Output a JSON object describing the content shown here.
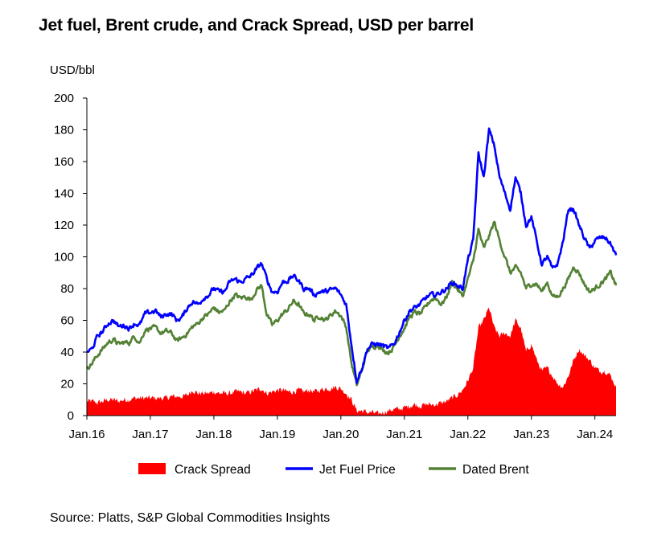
{
  "chart_data": {
    "type": "line",
    "title": "Jet fuel, Brent crude, and Crack Spread, USD per barrel",
    "ylabel": "USD/bbl",
    "xlabel": "",
    "ylim": [
      0,
      200
    ],
    "yticks": [
      0,
      20,
      40,
      60,
      80,
      100,
      120,
      140,
      160,
      180,
      200
    ],
    "xlim": [
      "2016-01",
      "2024-05"
    ],
    "xticks": [
      "Jan.16",
      "Jan.17",
      "Jan.18",
      "Jan.19",
      "Jan.20",
      "Jan.21",
      "Jan.22",
      "Jan.23",
      "Jan.24"
    ],
    "grid": false,
    "legend_position": "bottom",
    "x": [
      "2016-01",
      "2016-02",
      "2016-03",
      "2016-04",
      "2016-05",
      "2016-06",
      "2016-07",
      "2016-08",
      "2016-09",
      "2016-10",
      "2016-11",
      "2016-12",
      "2017-01",
      "2017-02",
      "2017-03",
      "2017-04",
      "2017-05",
      "2017-06",
      "2017-07",
      "2017-08",
      "2017-09",
      "2017-10",
      "2017-11",
      "2017-12",
      "2018-01",
      "2018-02",
      "2018-03",
      "2018-04",
      "2018-05",
      "2018-06",
      "2018-07",
      "2018-08",
      "2018-09",
      "2018-10",
      "2018-11",
      "2018-12",
      "2019-01",
      "2019-02",
      "2019-03",
      "2019-04",
      "2019-05",
      "2019-06",
      "2019-07",
      "2019-08",
      "2019-09",
      "2019-10",
      "2019-11",
      "2019-12",
      "2020-01",
      "2020-02",
      "2020-03",
      "2020-04",
      "2020-05",
      "2020-06",
      "2020-07",
      "2020-08",
      "2020-09",
      "2020-10",
      "2020-11",
      "2020-12",
      "2021-01",
      "2021-02",
      "2021-03",
      "2021-04",
      "2021-05",
      "2021-06",
      "2021-07",
      "2021-08",
      "2021-09",
      "2021-10",
      "2021-11",
      "2021-12",
      "2022-01",
      "2022-02",
      "2022-03",
      "2022-04",
      "2022-05",
      "2022-06",
      "2022-07",
      "2022-08",
      "2022-09",
      "2022-10",
      "2022-11",
      "2022-12",
      "2023-01",
      "2023-02",
      "2023-03",
      "2023-04",
      "2023-05",
      "2023-06",
      "2023-07",
      "2023-08",
      "2023-09",
      "2023-10",
      "2023-11",
      "2023-12",
      "2024-01",
      "2024-02",
      "2024-03",
      "2024-04",
      "2024-05"
    ],
    "series": [
      {
        "name": "Crack Spread",
        "kind": "area",
        "color": "#ff0000",
        "values": [
          9,
          9,
          8,
          9,
          10,
          10,
          9,
          10,
          10,
          11,
          11,
          11,
          11,
          11,
          11,
          11,
          12,
          12,
          12,
          13,
          16,
          14,
          14,
          14,
          15,
          14,
          14,
          14,
          15,
          15,
          14,
          15,
          16,
          17,
          14,
          15,
          16,
          16,
          15,
          15,
          16,
          15,
          16,
          15,
          16,
          17,
          17,
          18,
          17,
          14,
          10,
          3,
          3,
          2,
          2,
          1,
          2,
          3,
          4,
          4,
          5,
          6,
          7,
          6,
          7,
          7,
          7,
          8,
          9,
          11,
          13,
          16,
          22,
          30,
          55,
          60,
          68,
          55,
          50,
          52,
          50,
          60,
          55,
          40,
          45,
          35,
          28,
          30,
          25,
          20,
          18,
          25,
          35,
          42,
          38,
          35,
          30,
          28,
          28,
          25,
          18
        ]
      },
      {
        "name": "Jet Fuel Price",
        "kind": "line",
        "color": "#0000ff",
        "values": [
          40,
          42,
          50,
          53,
          58,
          60,
          56,
          57,
          55,
          58,
          57,
          64,
          65,
          66,
          62,
          64,
          64,
          60,
          62,
          68,
          72,
          70,
          74,
          76,
          80,
          78,
          78,
          84,
          86,
          84,
          86,
          88,
          92,
          96,
          86,
          78,
          78,
          84,
          85,
          88,
          85,
          80,
          80,
          76,
          78,
          78,
          79,
          80,
          76,
          70,
          45,
          22,
          30,
          42,
          45,
          45,
          44,
          42,
          45,
          52,
          60,
          66,
          68,
          70,
          74,
          76,
          76,
          78,
          80,
          84,
          82,
          80,
          98,
          110,
          165,
          150,
          180,
          170,
          150,
          140,
          130,
          150,
          140,
          120,
          125,
          110,
          95,
          100,
          92,
          96,
          110,
          130,
          130,
          120,
          112,
          105,
          110,
          112,
          112,
          108,
          101
        ]
      },
      {
        "name": "Dated Brent",
        "kind": "line",
        "color": "#548235",
        "values": [
          30,
          33,
          38,
          42,
          46,
          48,
          45,
          46,
          46,
          50,
          46,
          54,
          55,
          55,
          52,
          53,
          52,
          47,
          49,
          52,
          56,
          58,
          62,
          64,
          68,
          65,
          66,
          72,
          76,
          74,
          75,
          73,
          79,
          82,
          64,
          57,
          60,
          64,
          67,
          72,
          70,
          64,
          64,
          60,
          63,
          60,
          63,
          66,
          63,
          56,
          33,
          19,
          29,
          41,
          43,
          45,
          41,
          40,
          43,
          50,
          55,
          62,
          65,
          64,
          68,
          73,
          74,
          70,
          75,
          84,
          80,
          75,
          86,
          97,
          117,
          105,
          113,
          122,
          110,
          100,
          90,
          93,
          90,
          80,
          83,
          83,
          78,
          84,
          75,
          75,
          80,
          86,
          94,
          90,
          83,
          78,
          80,
          83,
          86,
          90,
          82
        ]
      }
    ]
  },
  "source": "Source: Platts, S&P Global Commodities Insights"
}
